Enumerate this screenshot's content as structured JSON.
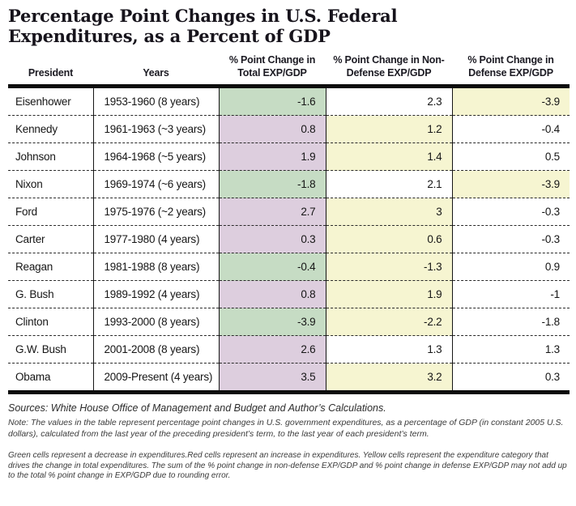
{
  "title_line1": "Percentage Point Changes in U.S. Federal",
  "title_line2": "Expenditures, as a Percent of GDP",
  "chart_data": {
    "type": "table",
    "columns": [
      "President",
      "Years",
      "% Point Change in Total EXP/GDP",
      "% Point Change in Non-Defense EXP/GDP",
      "% Point Change in Defense EXP/GDP"
    ],
    "rows": [
      {
        "president": "Eisenhower",
        "years": "1953-1960 (8 years)",
        "total": "-1.6",
        "total_bg": "green",
        "nondefense": "2.3",
        "nondefense_bg": "white",
        "defense": "-3.9",
        "defense_bg": "yellow"
      },
      {
        "president": "Kennedy",
        "years": "1961-1963 (~3 years)",
        "total": "0.8",
        "total_bg": "red",
        "nondefense": "1.2",
        "nondefense_bg": "yellow",
        "defense": "-0.4",
        "defense_bg": "white"
      },
      {
        "president": "Johnson",
        "years": "1964-1968 (~5 years)",
        "total": "1.9",
        "total_bg": "red",
        "nondefense": "1.4",
        "nondefense_bg": "yellow",
        "defense": "0.5",
        "defense_bg": "white"
      },
      {
        "president": "Nixon",
        "years": "1969-1974 (~6 years)",
        "total": "-1.8",
        "total_bg": "green",
        "nondefense": "2.1",
        "nondefense_bg": "white",
        "defense": "-3.9",
        "defense_bg": "yellow"
      },
      {
        "president": "Ford",
        "years": "1975-1976 (~2 years)",
        "total": "2.7",
        "total_bg": "red",
        "nondefense": "3",
        "nondefense_bg": "yellow",
        "defense": "-0.3",
        "defense_bg": "white"
      },
      {
        "president": "Carter",
        "years": "1977-1980 (4 years)",
        "total": "0.3",
        "total_bg": "red",
        "nondefense": "0.6",
        "nondefense_bg": "yellow",
        "defense": "-0.3",
        "defense_bg": "white"
      },
      {
        "president": "Reagan",
        "years": "1981-1988 (8 years)",
        "total": "-0.4",
        "total_bg": "green",
        "nondefense": "-1.3",
        "nondefense_bg": "yellow",
        "defense": "0.9",
        "defense_bg": "white"
      },
      {
        "president": "G. Bush",
        "years": "1989-1992 (4 years)",
        "total": "0.8",
        "total_bg": "red",
        "nondefense": "1.9",
        "nondefense_bg": "yellow",
        "defense": "-1",
        "defense_bg": "white"
      },
      {
        "president": "Clinton",
        "years": "1993-2000 (8 years)",
        "total": "-3.9",
        "total_bg": "green",
        "nondefense": "-2.2",
        "nondefense_bg": "yellow",
        "defense": "-1.8",
        "defense_bg": "white"
      },
      {
        "president": "G.W. Bush",
        "years": "2001-2008 (8 years)",
        "total": "2.6",
        "total_bg": "red",
        "nondefense": "1.3",
        "nondefense_bg": "white",
        "defense": "1.3",
        "defense_bg": "white"
      },
      {
        "president": "Obama",
        "years": "2009-Present (4 years)",
        "total": "3.5",
        "total_bg": "red",
        "nondefense": "3.2",
        "nondefense_bg": "yellow",
        "defense": "0.3",
        "defense_bg": "white"
      }
    ],
    "cell_color_semantics": {
      "green": "decrease in expenditures",
      "red": "increase in expenditures",
      "yellow": "expenditure category that drives the change in total expenditures"
    }
  },
  "colors": {
    "green": "#c6dcc4",
    "red": "#ddcede",
    "yellow": "#f6f5d1"
  },
  "footnotes": {
    "sources": "Sources: White House Office of Management and Budget and Author’s Calculations.",
    "note": "Note: The values in the table represent percentage point changes in U.S. government expenditures, as a percentage of GDP (in constant 2005 U.S. dollars), calculated from the last year of the preceding president’s term, to the last year of each president’s term.",
    "legend": "Green cells represent a decrease in expenditures.Red cells represent an increase in expenditures. Yellow cells represent the expenditure category that drives the change in total expenditures. The sum of the % point change in non-defense EXP/GDP and % point change in defense EXP/GDP may not add up to the total % point change in EXP/GDP due to rounding error."
  }
}
